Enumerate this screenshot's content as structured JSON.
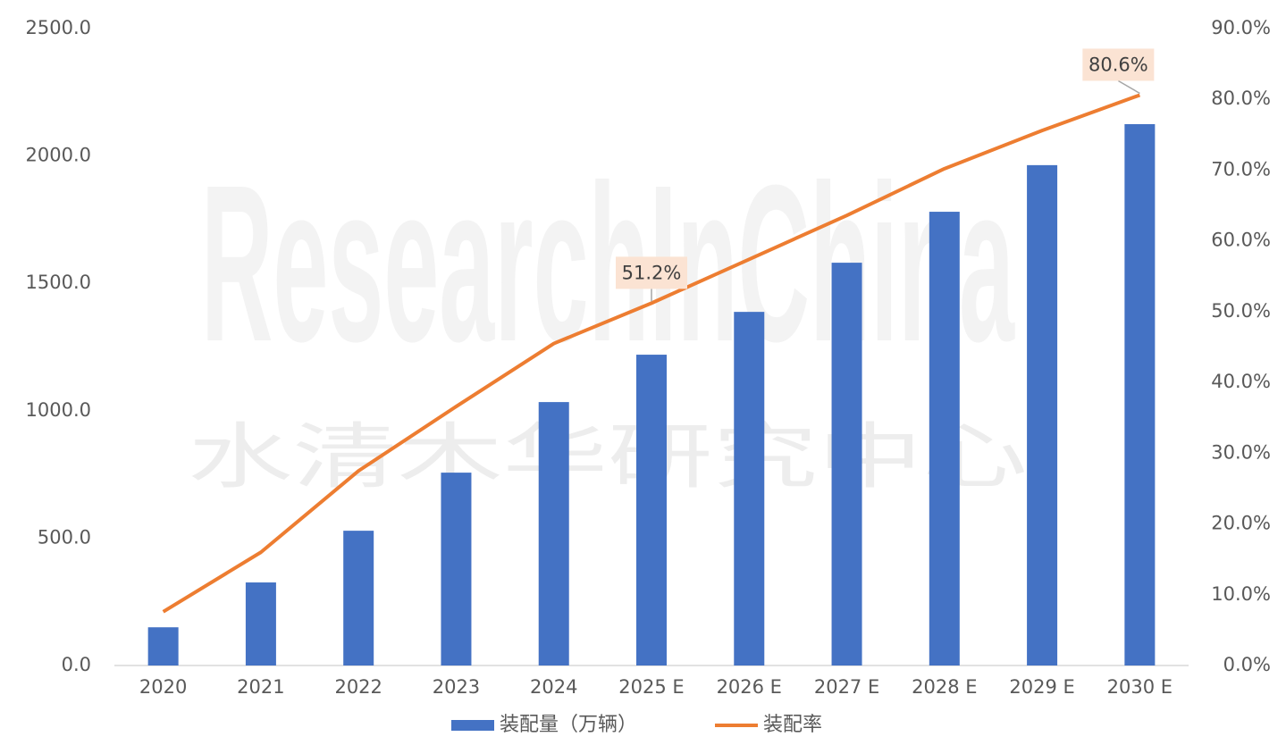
{
  "chart_data": {
    "type": "bar-line",
    "watermarks": [
      "ResearchInChina",
      "水清木华研究中心"
    ],
    "categories": [
      "2020",
      "2021",
      "2022",
      "2023",
      "2024",
      "2025 E",
      "2026 E",
      "2027 E",
      "2028 E",
      "2029 E",
      "2030 E"
    ],
    "series": [
      {
        "name": "装配量（万辆）",
        "type": "bar",
        "color": "#4472c4",
        "values": [
          150,
          326,
          529,
          757,
          1034,
          1220,
          1388,
          1581,
          1781,
          1964,
          2125
        ]
      },
      {
        "name": "装配率",
        "type": "line",
        "axis": "y2",
        "color": "#ed7d31",
        "values": [
          7.6,
          16.0,
          27.5,
          36.6,
          45.5,
          51.2,
          57.4,
          63.6,
          70.2,
          75.6,
          80.6
        ],
        "value_labels": [
          null,
          null,
          null,
          null,
          null,
          "51.2%",
          null,
          null,
          null,
          null,
          "80.6%"
        ]
      }
    ],
    "ylim": [
      0,
      2500
    ],
    "yticks": [
      {
        "value": 0,
        "label": "0.0"
      },
      {
        "value": 500,
        "label": "500.0"
      },
      {
        "value": 1000,
        "label": "1000.0"
      },
      {
        "value": 1500,
        "label": "1500.0"
      },
      {
        "value": 2000,
        "label": "2000.0"
      },
      {
        "value": 2500,
        "label": "2500.0"
      }
    ],
    "y2lim": [
      0,
      90
    ],
    "y2ticks": [
      {
        "value": 0,
        "label": "0.0%"
      },
      {
        "value": 10,
        "label": "10.0%"
      },
      {
        "value": 20,
        "label": "20.0%"
      },
      {
        "value": 30,
        "label": "30.0%"
      },
      {
        "value": 40,
        "label": "40.0%"
      },
      {
        "value": 50,
        "label": "50.0%"
      },
      {
        "value": 60,
        "label": "60.0%"
      },
      {
        "value": 70,
        "label": "70.0%"
      },
      {
        "value": 80,
        "label": "80.0%"
      },
      {
        "value": 90,
        "label": "90.0%"
      }
    ],
    "legend": "bottom"
  }
}
